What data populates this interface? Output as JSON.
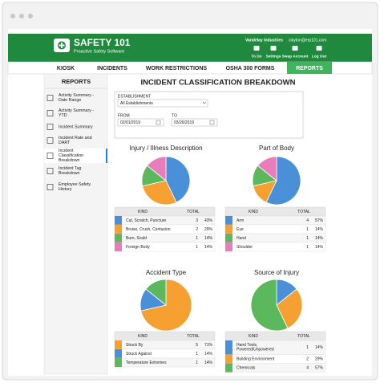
{
  "header": {
    "logo": "SAFETY 101",
    "tagline": "Proactive Safety Software",
    "company": "Vandelay Industries",
    "email": "clayton@erp101.com",
    "actions": [
      "To Do",
      "Settings",
      "Swap Account",
      "Log Out"
    ]
  },
  "nav": [
    "KIOSK",
    "INCIDENTS",
    "WORK RESTRICTIONS",
    "OSHA 300 FORMS",
    "REPORTS"
  ],
  "sidebar": {
    "title": "REPORTS",
    "items": [
      "Activity Summary - Date Range",
      "Activity Summary - YTD",
      "Incident Summary",
      "Incident Rate and DART",
      "Incident Classification Breakdown",
      "Incident Tag Breakdown",
      "Employee Safety History"
    ]
  },
  "page_title": "INCIDENT CLASSIFICATION BREAKDOWN",
  "filters": {
    "establishment_label": "ESTABLISHMENT",
    "establishment": "All Establishments",
    "from_label": "FROM",
    "from": "02/01/2019",
    "to_label": "TO",
    "to": "03/26/2019"
  },
  "chart_data": [
    {
      "type": "pie",
      "title": "Injury / Illness Description",
      "columns": [
        "KIND",
        "TOTAL"
      ],
      "categories": [
        "Cut, Scratch, Puncture",
        "Bruise, Crush, Contusion",
        "Burn, Scald",
        "Foreign Body"
      ],
      "values": [
        3,
        2,
        1,
        1
      ],
      "shares": [
        "43%",
        "29%",
        "14%",
        "14%"
      ],
      "colors": [
        "#4a90d9",
        "#f5a030",
        "#5cb85c",
        "#e87dbb"
      ]
    },
    {
      "type": "pie",
      "title": "Part of Body",
      "columns": [
        "KIND",
        "TOTAL"
      ],
      "categories": [
        "Arm",
        "Eye",
        "Hand",
        "Shoulder"
      ],
      "values": [
        4,
        1,
        1,
        1
      ],
      "shares": [
        "57%",
        "14%",
        "14%",
        "14%"
      ],
      "colors": [
        "#4a90d9",
        "#f5a030",
        "#5cb85c",
        "#e87dbb"
      ]
    },
    {
      "type": "pie",
      "title": "Accident Type",
      "columns": [
        "KIND",
        "TOTAL"
      ],
      "categories": [
        "Struck By",
        "Struck Against",
        "Temperature Extremes"
      ],
      "values": [
        5,
        1,
        1
      ],
      "shares": [
        "71%",
        "14%",
        "14%"
      ],
      "colors": [
        "#f5a030",
        "#4a90d9",
        "#5cb85c"
      ]
    },
    {
      "type": "pie",
      "title": "Source of Injury",
      "columns": [
        "KIND",
        "TOTAL"
      ],
      "categories": [
        "Hand Tools, Powered/Unpowered",
        "Building Environment",
        "Chemicals"
      ],
      "values": [
        1,
        2,
        4
      ],
      "shares": [
        "14%",
        "29%",
        "57%"
      ],
      "colors": [
        "#4a90d9",
        "#f5a030",
        "#5cb85c"
      ]
    }
  ]
}
